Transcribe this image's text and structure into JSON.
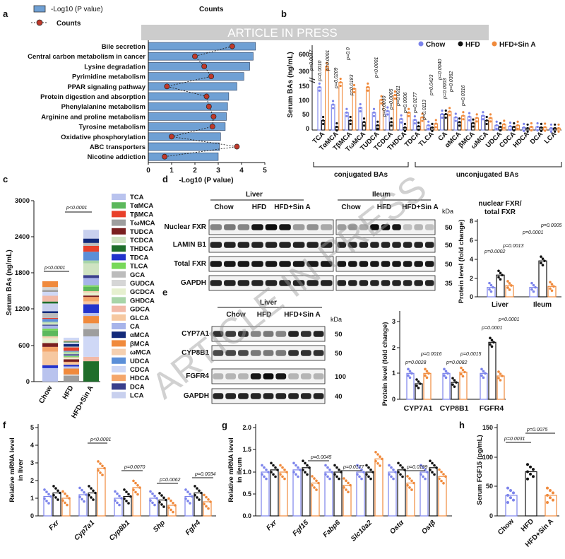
{
  "banner": "ARTICLE IN PRESS",
  "watermark": "ARTICLE IN PRESS",
  "panel_labels": {
    "a": "a",
    "b": "b",
    "c": "c",
    "d": "d",
    "e": "e",
    "f": "f",
    "g": "g",
    "h": "h"
  },
  "colors": {
    "chow": "#7b83eb",
    "hfd": "#111111",
    "sin": "#f08a3c",
    "bar_a": "#6fa0d4",
    "dot_a": "#c0392b"
  },
  "panel_a": {
    "legend_bar": "-Log10 (P value)",
    "legend_counts_header": "Counts",
    "legend_dot": "Counts",
    "xlabel": "-Log10 (P value)",
    "pathways": [
      "Bile secretion",
      "Central carbon metabolism in cancer",
      "Lysine degradation",
      "Pyrimidine metabolism",
      "PPAR signaling pathway",
      "Protein digestion and absorption",
      "Phenylalanine metabolism",
      "Arginine and proline metabolism",
      "Tyrosine metabolism",
      "Oxidative phosphorylation",
      "ABC transporters",
      "Nicotine addiction"
    ],
    "ticks": [
      "0",
      "1",
      "2",
      "3",
      "4",
      "5"
    ]
  },
  "panel_b": {
    "ylabel": "Serum BAs (ng/mL)",
    "legend": [
      "Chow",
      "HFD",
      "HFD+Sin A"
    ],
    "top_ticks": [
      "600",
      "300"
    ],
    "bot_ticks": [
      "150",
      "100",
      "50",
      "0"
    ],
    "bile_acids": [
      "TCA",
      "TαMCA",
      "TβMCA",
      "TωMCA",
      "TUDCA",
      "TCDCA",
      "THDCA",
      "TDCA",
      "TLCA",
      "CA",
      "αMCA",
      "βMCA",
      "ωMCA",
      "UDCA",
      "CDCA",
      "HDCA",
      "DCA",
      "LCA"
    ],
    "pvalues": [
      "p=0.0047",
      "p=0.0010",
      "p=0.0001",
      "p=0.0",
      "p=0.0209",
      "p=0.0183",
      "p<0.0001",
      "p=0.0030",
      "p=0.0005",
      "p=0.0011",
      "p=0.0006",
      "p=0.0177",
      "p=0.0113",
      "p=0.0423",
      "p=0.0040",
      "p=0.0003",
      "p=0.0362",
      "p=0.0316"
    ],
    "group_conj": "conjugated BAs",
    "group_unconj": "unconjugated BAs"
  },
  "panel_c": {
    "ylabel": "Serum BAs (ng/mL)",
    "yticks": [
      "3000",
      "2400",
      "1800",
      "1200",
      "600",
      "0"
    ],
    "groups": [
      "Chow",
      "HFD",
      "HFD+Sin A"
    ],
    "p1": "p<0.0001",
    "p2": "p<0.0001",
    "legend": [
      "TCA",
      "TαMCA",
      "TβMCA",
      "TωMCA",
      "TUDCA",
      "TCDCA",
      "THDCA",
      "TDCA",
      "TLCA",
      "GCA",
      "GUDCA",
      "GCDCA",
      "GHDCA",
      "GDCA",
      "GLCA",
      "CA",
      "αMCA",
      "βMCA",
      "ωMCA",
      "UDCA",
      "CDCA",
      "HDCA",
      "DCA",
      "LCA"
    ],
    "legend_colors": [
      "#b9c3ee",
      "#5cb85c",
      "#e8402a",
      "#9e9e9e",
      "#7a1f1f",
      "#cfe3c1",
      "#1f6e2b",
      "#2233cc",
      "#78d85a",
      "#bcbcbc",
      "#d6d6d6",
      "#e6f0cf",
      "#a8d5a8",
      "#f2b9a7",
      "#f6c8a0",
      "#a7b4ea",
      "#132a7a",
      "#f08a3c",
      "#f5d0b0",
      "#5b8fd8",
      "#cfd8f6",
      "#f4a66b",
      "#3a3f8c",
      "#c8d0ee"
    ],
    "chart_data": {
      "type": "bar",
      "categories": [
        "Chow",
        "HFD",
        "HFD+Sin A"
      ],
      "values": [
        1600,
        700,
        2420
      ],
      "ylim": [
        0,
        3000
      ],
      "ylabel": "Serum BAs (ng/mL)"
    }
  },
  "panel_d": {
    "liver": "Liver",
    "ileum": "Ileum",
    "groups": [
      "Chow",
      "HFD",
      "HFD+Sin A",
      "Chow",
      "HFD",
      "HFD+Sin A"
    ],
    "kda": "kDa",
    "rows": [
      "Nuclear FXR",
      "LAMIN B1",
      "Total FXR",
      "GAPDH"
    ],
    "sizes": [
      "50",
      "50",
      "50",
      "35"
    ],
    "chart_title1": "nuclear FXR/",
    "chart_title2": "total FXR",
    "ylabel": "Protein level (fold change)",
    "yticks": [
      "8",
      "6",
      "4",
      "2",
      "0"
    ],
    "xcats": [
      "Liver",
      "Ileum"
    ],
    "pvals": [
      "p=0.0002",
      "p=0.0013",
      "p=0.0001",
      "p=0.0005"
    ]
  },
  "panel_e": {
    "liver": "Liver",
    "groups": [
      "Chow",
      "HFD",
      "HFD+Sin A"
    ],
    "kda": "kDa",
    "rows": [
      "CYP7A1",
      "CYP8B1",
      "FGFR4",
      "GAPDH"
    ],
    "sizes": [
      "50",
      "50",
      "100",
      "40"
    ],
    "ylabel": "Protein level (fold change)",
    "yticks": [
      "3",
      "2",
      "1",
      "0"
    ],
    "xcats": [
      "CYP7A1",
      "CYP8B1",
      "FGFR4"
    ],
    "pvals": [
      "p=0.0016",
      "p=0.0028",
      "p=0.0015",
      "p=0.0082",
      "p<0.0001",
      "p=0.0001"
    ]
  },
  "panel_f": {
    "ylabel": "Relative mRNA level in liver",
    "yticks": [
      "5",
      "4",
      "3",
      "2",
      "1",
      "0"
    ],
    "genes": [
      "Fxr",
      "Cyp7a1",
      "Cyp8b1",
      "Shp",
      "Fgfr4"
    ],
    "pvals": [
      "p<0.0001",
      "p=0.0070",
      "p=0.0062",
      "p=0.0034"
    ]
  },
  "panel_g": {
    "ylabel": "Relative mRNA level in ileum",
    "yticks": [
      "2.0",
      "1.5",
      "1.0",
      "0.5",
      "0.0"
    ],
    "genes": [
      "Fxr",
      "Fgf15",
      "Fabp6",
      "Slc10a2",
      "Ostα",
      "Ostβ"
    ],
    "pvals": [
      "p=0.0045",
      "p=0.0177",
      "p=0.0199"
    ]
  },
  "panel_h": {
    "ylabel": "Serum FGF15 (pg/mL)",
    "yticks": [
      "150",
      "100",
      "50",
      "0"
    ],
    "groups": [
      "Chow",
      "HFD",
      "HFD+Sin A"
    ],
    "pvals": [
      "p=0.0031",
      "p=0.0075"
    ],
    "chart_data": {
      "type": "bar",
      "categories": [
        "Chow",
        "HFD",
        "HFD+Sin A"
      ],
      "values": [
        35,
        75,
        35
      ],
      "ylim": [
        0,
        150
      ],
      "ylabel": "Serum FGF15 (pg/mL)"
    }
  }
}
